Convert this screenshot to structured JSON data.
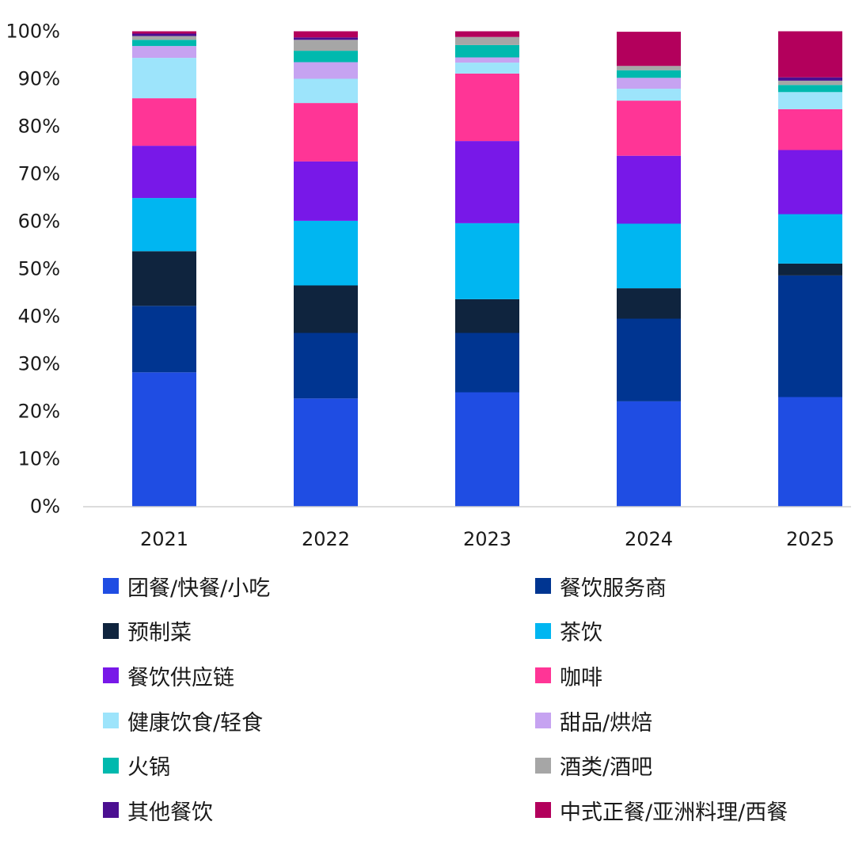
{
  "chart_data": {
    "type": "bar",
    "stacked": true,
    "categories": [
      "2021",
      "2022",
      "2023",
      "2024",
      "2025"
    ],
    "ylim": [
      0,
      100
    ],
    "yticks": [
      "0%",
      "10%",
      "20%",
      "30%",
      "40%",
      "50%",
      "60%",
      "70%",
      "80%",
      "90%",
      "100%"
    ],
    "title": "",
    "xlabel": "",
    "ylabel": "",
    "grid": false,
    "legend_position": "bottom",
    "series": [
      {
        "name": "团餐/快餐/小吃",
        "color": "#1f4de3",
        "values": [
          28.2,
          22.7,
          24.0,
          22.1,
          23.0
        ]
      },
      {
        "name": "餐饮服务商",
        "color": "#003591",
        "values": [
          14.0,
          13.8,
          12.5,
          17.4,
          25.6
        ]
      },
      {
        "name": "预制菜",
        "color": "#0f243e",
        "values": [
          11.5,
          10.0,
          7.1,
          6.4,
          2.5
        ]
      },
      {
        "name": "茶饮",
        "color": "#00b6f1",
        "values": [
          11.2,
          13.6,
          16.0,
          13.6,
          10.4
        ]
      },
      {
        "name": "餐饮供应链",
        "color": "#7818e8",
        "values": [
          11.0,
          12.5,
          17.3,
          14.3,
          13.5
        ]
      },
      {
        "name": "咖啡",
        "color": "#ff3596",
        "values": [
          10.0,
          12.3,
          14.2,
          11.6,
          8.6
        ]
      },
      {
        "name": "健康饮食/轻食",
        "color": "#9de4fb",
        "values": [
          8.5,
          5.1,
          2.3,
          2.5,
          3.6
        ]
      },
      {
        "name": "甜品/烘焙",
        "color": "#c6a3f1",
        "values": [
          2.5,
          3.5,
          1.1,
          2.3,
          0.0
        ]
      },
      {
        "name": "火锅",
        "color": "#00b9ae",
        "values": [
          1.3,
          2.4,
          2.6,
          1.6,
          1.5
        ]
      },
      {
        "name": "酒类/酒吧",
        "color": "#a6a6a6",
        "values": [
          0.8,
          2.3,
          1.7,
          0.9,
          0.9
        ]
      },
      {
        "name": "其他餐饮",
        "color": "#4b0f91",
        "values": [
          0.5,
          0.5,
          0.0,
          0.0,
          0.7
        ]
      },
      {
        "name": "中式正餐/亚洲料理/西餐",
        "color": "#b3005c",
        "values": [
          0.5,
          1.3,
          1.2,
          7.2,
          9.7
        ]
      }
    ]
  }
}
